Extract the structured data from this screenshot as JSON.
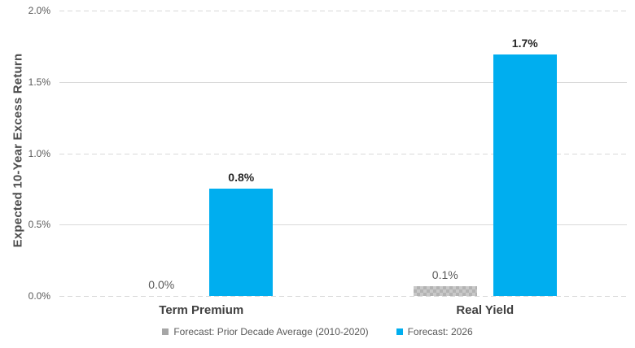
{
  "chart_data": {
    "type": "bar",
    "title": "",
    "xlabel": "",
    "ylabel": "Expected 10-Year Excess Return",
    "units": "percent",
    "categories": [
      "Term Premium",
      "Real Yield"
    ],
    "series": [
      {
        "name": "Forecast: Prior Decade Average (2010-2020)",
        "values": [
          0.0,
          0.07
        ],
        "data_labels": [
          "0.0%",
          "0.1%"
        ],
        "color": "#a6a6a6",
        "fill_pattern": "checkerboard",
        "pattern_colors": [
          "#b3b3b3",
          "#c9c9c9"
        ]
      },
      {
        "name": "Forecast: 2026",
        "values": [
          0.75,
          1.69
        ],
        "data_labels": [
          "0.8%",
          "1.7%"
        ],
        "color": "#00aeef",
        "fill_pattern": "solid"
      }
    ],
    "ylim": [
      0,
      2.0
    ],
    "yticks": [
      {
        "value": 0.0,
        "label": "0.0%"
      },
      {
        "value": 0.5,
        "label": "0.5%"
      },
      {
        "value": 1.0,
        "label": "1.0%"
      },
      {
        "value": 1.5,
        "label": "1.5%"
      },
      {
        "value": 2.0,
        "label": "2.0%"
      }
    ],
    "grid": {
      "axis": "y",
      "color": "#d9d9d9",
      "style_note": "dashed lines at 0.0%/1.0%/2.0%, solid lines at 0.5%/1.5%"
    },
    "legend": {
      "position": "bottom",
      "entries": [
        "Forecast: Prior Decade Average (2010-2020)",
        "Forecast: 2026"
      ]
    }
  }
}
